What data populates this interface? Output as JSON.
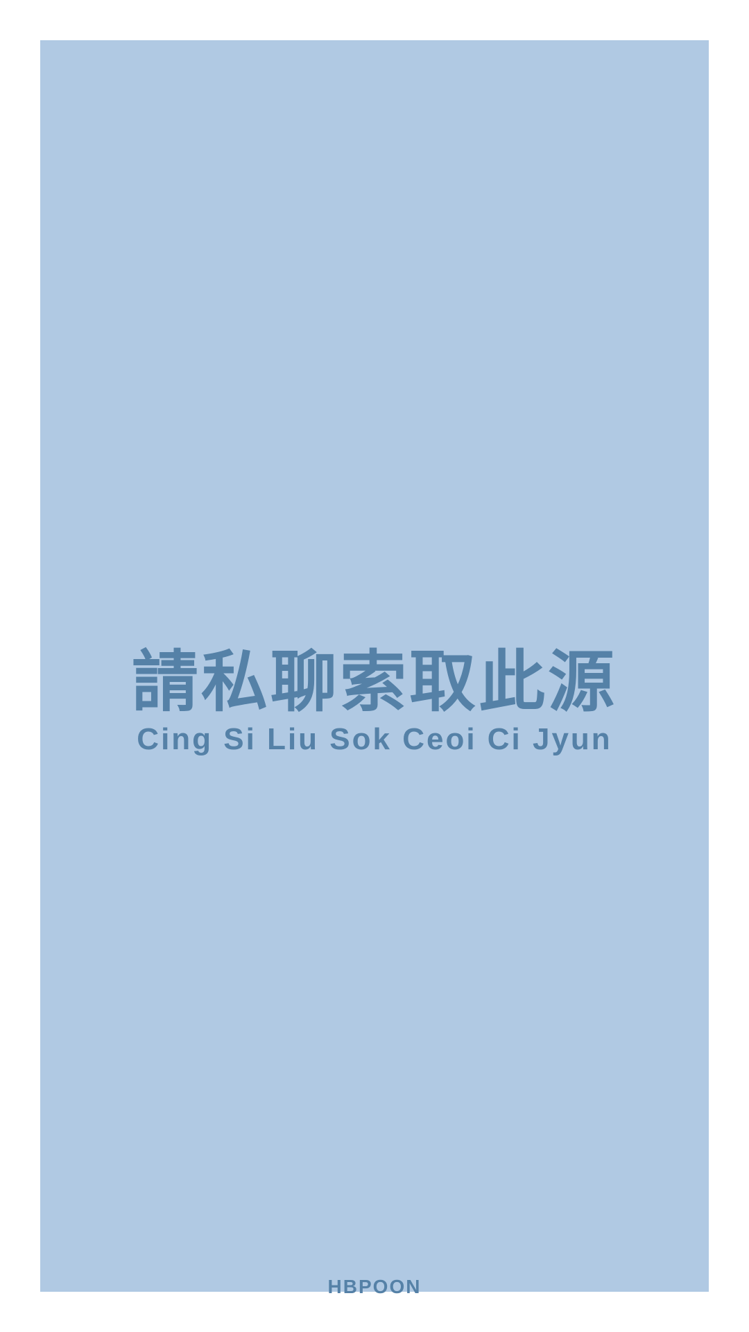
{
  "colors": {
    "page_background": "#ffffff",
    "panel_background": "#b0c9e3",
    "text": "#5581a7"
  },
  "title": {
    "chinese": "請私聊索取此源",
    "romanization": "Cing Si Liu Sok Ceoi Ci Jyun"
  },
  "footer": {
    "brand": "HBPOON"
  }
}
